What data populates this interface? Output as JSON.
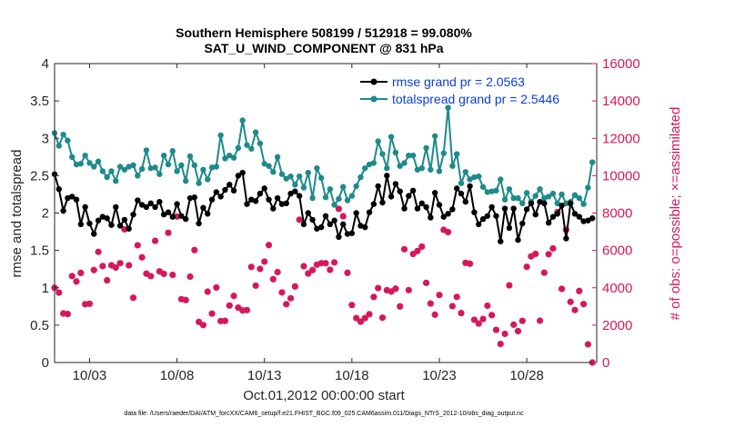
{
  "chart_data": {
    "type": "line",
    "title": "Southern Hemisphere 508199 / 512918 = 99.080%",
    "subtitle": "SAT_U_WIND_COMPONENT @ 831 hPa",
    "xlabel": "Oct.01,2012 00:00:00 start",
    "ylabel_left": "rmse and totalspread",
    "ylabel_right": "# of obs: o=possible; ×=assimilated",
    "x_tick_labels": [
      "10/03",
      "10/08",
      "10/13",
      "10/18",
      "10/23",
      "10/28"
    ],
    "x_tick_days": [
      3,
      8,
      13,
      18,
      23,
      28
    ],
    "xlim_days": [
      1.0,
      32.0
    ],
    "ylim_left": [
      0,
      4
    ],
    "yticks_left": [
      "0",
      "0.5",
      "1",
      "1.5",
      "2",
      "2.5",
      "3",
      "3.5",
      "4"
    ],
    "ylim_right": [
      0,
      16000
    ],
    "yticks_right": [
      "0",
      "2000",
      "4000",
      "6000",
      "8000",
      "10000",
      "12000",
      "14000",
      "16000"
    ],
    "x_days": [
      1.0,
      1.25,
      1.5,
      1.75,
      2.0,
      2.25,
      2.5,
      2.75,
      3.0,
      3.25,
      3.5,
      3.75,
      4.0,
      4.25,
      4.5,
      4.75,
      5.0,
      5.25,
      5.5,
      5.75,
      6.0,
      6.25,
      6.5,
      6.75,
      7.0,
      7.25,
      7.5,
      7.75,
      8.0,
      8.25,
      8.5,
      8.75,
      9.0,
      9.25,
      9.5,
      9.75,
      10.0,
      10.25,
      10.5,
      10.75,
      11.0,
      11.25,
      11.5,
      11.75,
      12.0,
      12.25,
      12.5,
      12.75,
      13.0,
      13.25,
      13.5,
      13.75,
      14.0,
      14.25,
      14.5,
      14.75,
      15.0,
      15.25,
      15.5,
      15.75,
      16.0,
      16.25,
      16.5,
      16.75,
      17.0,
      17.25,
      17.5,
      17.75,
      18.0,
      18.25,
      18.5,
      18.75,
      19.0,
      19.25,
      19.5,
      19.75,
      20.0,
      20.25,
      20.5,
      20.75,
      21.0,
      21.25,
      21.5,
      21.75,
      22.0,
      22.25,
      22.5,
      22.75,
      23.0,
      23.25,
      23.5,
      23.75,
      24.0,
      24.25,
      24.5,
      24.75,
      25.0,
      25.25,
      25.5,
      25.75,
      26.0,
      26.25,
      26.5,
      26.75,
      27.0,
      27.25,
      27.5,
      27.75,
      28.0,
      28.25,
      28.5,
      28.75,
      29.0,
      29.25,
      29.5,
      29.75,
      30.0,
      30.25,
      30.5,
      30.75,
      31.0,
      31.25,
      31.5,
      31.75
    ],
    "series": [
      {
        "name": "rmse grand pr = 2.0563",
        "axis": "left",
        "color": "#000000",
        "marker": "circle",
        "values": [
          2.52,
          2.32,
          2.03,
          2.2,
          2.22,
          2.18,
          1.85,
          2.08,
          1.86,
          1.72,
          1.9,
          1.95,
          1.93,
          1.84,
          2.08,
          1.83,
          1.91,
          1.79,
          1.98,
          2.17,
          2.11,
          2.08,
          2.13,
          2.08,
          2.15,
          1.98,
          2.01,
          1.95,
          2.12,
          1.96,
          1.92,
          2.2,
          2.21,
          1.86,
          2.07,
          1.99,
          2.18,
          2.28,
          2.22,
          2.31,
          2.38,
          2.3,
          2.5,
          2.54,
          2.12,
          2.18,
          2.16,
          2.26,
          2.33,
          2.18,
          2.06,
          2.2,
          2.12,
          2.13,
          2.26,
          2.29,
          2.23,
          1.85,
          2.0,
          1.91,
          1.79,
          1.81,
          1.96,
          1.85,
          1.9,
          1.68,
          1.85,
          1.72,
          1.73,
          2.0,
          1.83,
          1.81,
          2.01,
          2.12,
          2.36,
          2.14,
          2.5,
          2.22,
          2.39,
          2.29,
          2.06,
          2.23,
          2.3,
          2.06,
          2.13,
          2.08,
          1.94,
          2.27,
          2.11,
          1.95,
          1.99,
          2.05,
          2.33,
          2.26,
          2.15,
          2.36,
          2.01,
          1.85,
          1.92,
          1.96,
          2.08,
          1.96,
          1.62,
          2.06,
          1.8,
          2.06,
          1.64,
          1.86,
          2.05,
          2.13,
          1.98,
          2.15,
          2.13,
          1.87,
          1.95,
          1.99,
          2.1,
          1.66,
          2.13,
          1.99,
          1.95,
          1.89,
          1.9,
          1.93
        ]
      },
      {
        "name": "totalspread grand pr = 2.5446",
        "axis": "left",
        "color": "#1f8a8a",
        "marker": "circle",
        "values": [
          3.07,
          2.9,
          3.05,
          2.97,
          2.75,
          2.65,
          2.66,
          2.77,
          2.67,
          2.62,
          2.69,
          2.56,
          2.48,
          2.56,
          2.43,
          2.62,
          2.58,
          2.62,
          2.64,
          2.5,
          2.59,
          2.84,
          2.6,
          2.61,
          2.52,
          2.77,
          2.65,
          2.83,
          2.56,
          2.64,
          2.43,
          2.76,
          2.64,
          2.4,
          2.58,
          2.45,
          2.61,
          2.62,
          3.04,
          2.73,
          2.77,
          2.74,
          2.87,
          3.24,
          2.91,
          2.86,
          3.08,
          2.93,
          2.66,
          2.63,
          2.55,
          2.75,
          2.52,
          2.46,
          2.49,
          2.38,
          2.49,
          2.34,
          2.54,
          2.2,
          2.6,
          2.47,
          2.21,
          2.32,
          2.11,
          2.19,
          2.35,
          2.17,
          2.23,
          2.36,
          2.48,
          2.6,
          2.65,
          2.67,
          2.96,
          2.79,
          2.6,
          3.02,
          2.81,
          2.63,
          2.67,
          2.77,
          2.77,
          2.58,
          2.6,
          2.87,
          2.58,
          3.03,
          2.56,
          2.8,
          3.41,
          2.63,
          2.79,
          2.4,
          2.55,
          2.45,
          2.48,
          2.49,
          2.35,
          2.28,
          2.29,
          2.3,
          2.45,
          2.18,
          2.32,
          2.2,
          2.2,
          2.13,
          2.27,
          2.15,
          2.23,
          2.32,
          2.2,
          2.22,
          2.26,
          2.13,
          2.25,
          2.13,
          2.15,
          2.24,
          2.2,
          2.12,
          2.34,
          2.68
        ]
      },
      {
        "name": "obs possible",
        "axis": "right",
        "color": "#d6185a",
        "marker": "circle",
        "values": [
          4000,
          3742,
          2625,
          2598,
          4628,
          4335,
          4795,
          3121,
          3147,
          4950,
          5921,
          5163,
          4400,
          5204,
          5082,
          5316,
          7127,
          5202,
          3464,
          6276,
          5628,
          4755,
          4624,
          6512,
          4878,
          4744,
          6944,
          4690,
          7815,
          3390,
          3342,
          4596,
          6017,
          2174,
          2004,
          3792,
          2618,
          4013,
          2217,
          2230,
          3048,
          3562,
          2936,
          2784,
          2805,
          5116,
          4112,
          5012,
          5402,
          6284,
          4460,
          4839,
          3751,
          3121,
          3437,
          4069,
          7642,
          5154,
          4765,
          4947,
          5238,
          5315,
          5313,
          4962,
          5359,
          8224,
          7828,
          4801,
          3076,
          2379,
          2185,
          2379,
          2583,
          3508,
          3984,
          2398,
          3871,
          3801,
          3950,
          3002,
          6063,
          3874,
          5809,
          5967,
          6204,
          4263,
          3159,
          2559,
          3613,
          7100,
          6981,
          3016,
          3510,
          2643,
          5333,
          5287,
          2288,
          2086,
          2332,
          3040,
          2537,
          1747,
          994,
          1534,
          4131,
          2024,
          1679,
          2228,
          5121,
          5679,
          5815,
          2237,
          4807,
          5797,
          6106,
          8048,
          3941,
          7102,
          3245,
          2808,
          3828,
          3128,
          972,
          0
        ]
      }
    ],
    "grid": false,
    "legend_position": "top-right"
  },
  "footer": {
    "data_file": "data file: /Users/raeder/DAI/ATM_forcXX/CAM6_setup/f.e21.FHIST_BGC.f09_025.CAM6assim.011/Diags_NTrS_2012-10/obs_diag_output.nc"
  }
}
